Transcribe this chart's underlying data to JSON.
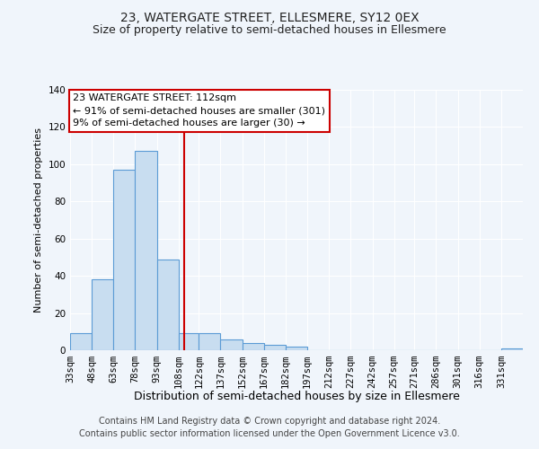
{
  "title": "23, WATERGATE STREET, ELLESMERE, SY12 0EX",
  "subtitle": "Size of property relative to semi-detached houses in Ellesmere",
  "xlabel": "Distribution of semi-detached houses by size in Ellesmere",
  "ylabel": "Number of semi-detached properties",
  "bar_color": "#c8ddf0",
  "bar_edge_color": "#5b9bd5",
  "bins": [
    33,
    48,
    63,
    78,
    93,
    108,
    122,
    137,
    152,
    167,
    182,
    197,
    212,
    227,
    242,
    257,
    271,
    286,
    301,
    316,
    331
  ],
  "bin_labels": [
    "33sqm",
    "48sqm",
    "63sqm",
    "78sqm",
    "93sqm",
    "108sqm",
    "122sqm",
    "137sqm",
    "152sqm",
    "167sqm",
    "182sqm",
    "197sqm",
    "212sqm",
    "227sqm",
    "242sqm",
    "257sqm",
    "271sqm",
    "286sqm",
    "301sqm",
    "316sqm",
    "331sqm"
  ],
  "counts": [
    9,
    38,
    97,
    107,
    49,
    9,
    9,
    6,
    4,
    3,
    2,
    0,
    0,
    0,
    0,
    0,
    0,
    0,
    0,
    0,
    1
  ],
  "vline_x": 112,
  "vline_color": "#cc0000",
  "ylim": [
    0,
    140
  ],
  "yticks": [
    0,
    20,
    40,
    60,
    80,
    100,
    120,
    140
  ],
  "annotation_title": "23 WATERGATE STREET: 112sqm",
  "annotation_line1": "← 91% of semi-detached houses are smaller (301)",
  "annotation_line2": "9% of semi-detached houses are larger (30) →",
  "annotation_box_color": "#ffffff",
  "annotation_box_edgecolor": "#cc0000",
  "footer_line1": "Contains HM Land Registry data © Crown copyright and database right 2024.",
  "footer_line2": "Contains public sector information licensed under the Open Government Licence v3.0.",
  "background_color": "#f0f5fb",
  "grid_color": "#ffffff",
  "title_fontsize": 10,
  "subtitle_fontsize": 9,
  "xlabel_fontsize": 9,
  "ylabel_fontsize": 8,
  "tick_fontsize": 7.5,
  "annotation_fontsize": 8,
  "footer_fontsize": 7
}
